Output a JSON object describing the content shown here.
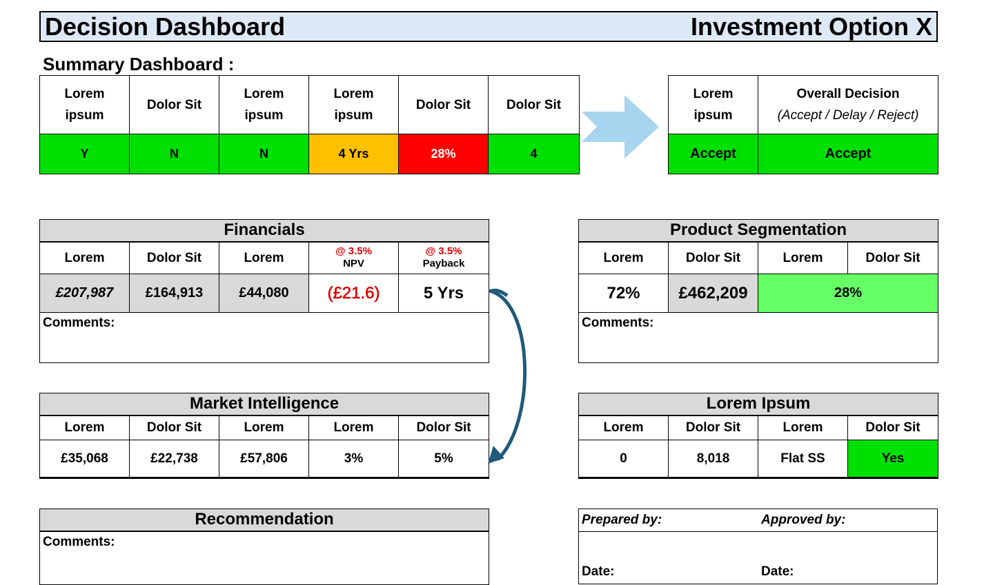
{
  "title": {
    "left": "Decision Dashboard",
    "right": "Investment Option X"
  },
  "summary": {
    "heading": "Summary Dashboard :",
    "headers": [
      "Lorem ipsum",
      "Dolor Sit",
      "Lorem ipsum",
      "Lorem ipsum",
      "Dolor Sit",
      "Dolor Sit"
    ],
    "values": [
      "Y",
      "N",
      "N",
      "4 Yrs",
      "28%",
      "4"
    ],
    "value_status": [
      "green",
      "green",
      "green",
      "amber",
      "red",
      "green"
    ]
  },
  "decision": {
    "header1": "Lorem ipsum",
    "header2_line1": "Overall Decision",
    "header2_line2": "(Accept / Delay / Reject)",
    "value1": "Accept",
    "value2": "Accept"
  },
  "financials": {
    "title": "Financials",
    "headers": [
      "Lorem",
      "Dolor Sit",
      "Lorem"
    ],
    "npv_rate": "@ 3.5%",
    "npv_label": "NPV",
    "payback_rate": "@ 3.5%",
    "payback_label": "Payback",
    "values": [
      "£207,987",
      "£164,913",
      "£44,080",
      "(£21.6)",
      "5 Yrs"
    ],
    "comments_label": "Comments:"
  },
  "product_segmentation": {
    "title": "Product Segmentation",
    "headers": [
      "Lorem",
      "Dolor Sit",
      "Lorem",
      "Dolor Sit"
    ],
    "values": [
      "72%",
      "£462,209",
      "28%"
    ],
    "comments_label": "Comments:"
  },
  "market_intelligence": {
    "title": "Market Intelligence",
    "headers": [
      "Lorem",
      "Dolor Sit",
      "Lorem",
      "Lorem",
      "Dolor Sit"
    ],
    "values": [
      "£35,068",
      "£22,738",
      "£57,806",
      "3%",
      "5%"
    ]
  },
  "lorem_ipsum": {
    "title": "Lorem Ipsum",
    "headers": [
      "Lorem",
      "Dolor Sit",
      "Lorem",
      "Dolor Sit"
    ],
    "values": [
      "0",
      "8,018",
      "Flat SS",
      "Yes"
    ]
  },
  "recommendation": {
    "title": "Recommendation",
    "comments_label": "Comments:"
  },
  "signoff": {
    "prepared_by": "Prepared by:",
    "approved_by": "Approved by:",
    "date_left": "Date:",
    "date_right": "Date:"
  },
  "colors": {
    "green": "#00e000",
    "light_green": "#66ff66",
    "amber": "#ffc000",
    "red": "#ff0000",
    "grey": "#d9d9d9",
    "title_bg": "#dde9f6",
    "arrow": "#a7d4ee",
    "curve_arrow": "#1f5a7a"
  }
}
